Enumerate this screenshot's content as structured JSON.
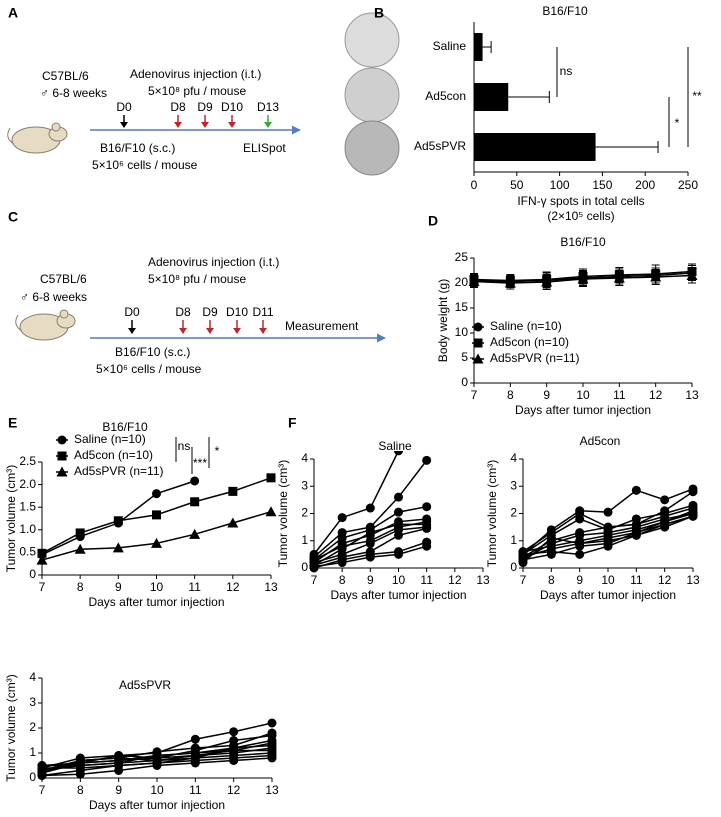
{
  "panel_labels": [
    "A",
    "B",
    "C",
    "D",
    "E",
    "F"
  ],
  "diagram_a": {
    "strain": "C57BL/6",
    "age": "♂ 6-8 weeks",
    "injection": "Adenovirus injection (i.t.)",
    "dose": "5×10⁸ pfu / mouse",
    "days": [
      "D0",
      "D8",
      "D9",
      "D10",
      "D13"
    ],
    "endpoint": "ELISpot",
    "tumor": "B16/F10 (s.c.)",
    "cells": "5×10⁶ cells / mouse"
  },
  "diagram_c": {
    "strain": "C57BL/6",
    "age": "♂ 6-8 weeks",
    "injection": "Adenovirus injection (i.t.)",
    "dose": "5×10⁸ pfu / mouse",
    "days": [
      "D0",
      "D8",
      "D9",
      "D10",
      "D11"
    ],
    "endpoint": "Measurement",
    "tumor": "B16/F10 (s.c.)",
    "cells": "5×10⁶ cells / mouse"
  },
  "chart_data": [
    {
      "type": "hbar",
      "title": "B16/F10",
      "xlabel": "IFN-γ spots in total cells",
      "xlabel_note": "(2×10⁵ cells)",
      "categories": [
        "Saline",
        "Ad5con",
        "Ad5sPVR"
      ],
      "values": [
        10,
        40,
        142
      ],
      "errors": [
        10,
        48,
        73
      ],
      "color": "#000000",
      "xlim": [
        0,
        250
      ],
      "xticks": [
        0,
        50,
        100,
        150,
        200,
        250
      ],
      "annotations": [
        "ns",
        "*",
        "**"
      ]
    },
    {
      "type": "line",
      "title": "B16/F10",
      "xlabel": "Days after tumor injection",
      "ylabel": "Body weight (g)",
      "x": [
        7,
        8,
        9,
        10,
        11,
        12,
        13
      ],
      "xlim": [
        7,
        13
      ],
      "xticks": [
        7,
        8,
        9,
        10,
        11,
        12,
        13
      ],
      "ylim": [
        0,
        25
      ],
      "yticks": [
        0,
        5,
        10,
        15,
        20,
        25
      ],
      "series": [
        {
          "name": "Saline (n=10)",
          "color": "#000000",
          "marker": "circle",
          "values": [
            20.5,
            20.3,
            20.5,
            21,
            21.3,
            21.5,
            22
          ],
          "errors": [
            1.2,
            1.2,
            1.5,
            1.5,
            1.5,
            1.5,
            1.5
          ]
        },
        {
          "name": "Ad5con (n=10)",
          "color": "#000000",
          "marker": "square",
          "values": [
            20.7,
            20.5,
            20.7,
            21.3,
            21.6,
            21.8,
            22.3
          ],
          "errors": [
            1.2,
            1.2,
            1.5,
            1.5,
            1.5,
            1.8,
            1.5
          ]
        },
        {
          "name": "Ad5sPVR (n=11)",
          "color": "#000000",
          "marker": "triangle",
          "values": [
            20.3,
            20,
            20.2,
            20.8,
            21,
            21.2,
            21.5
          ],
          "errors": [
            1.2,
            1.2,
            1.5,
            1.5,
            1.5,
            1.5,
            1.5
          ]
        }
      ]
    },
    {
      "type": "line",
      "title": "B16/F10",
      "xlabel": "Days after tumor injection",
      "ylabel": "Tumor volume (cm³)",
      "x": [
        7,
        8,
        9,
        10,
        11,
        12,
        13
      ],
      "xlim": [
        7,
        13
      ],
      "xticks": [
        7,
        8,
        9,
        10,
        11,
        12,
        13
      ],
      "ylim": [
        0,
        2.5
      ],
      "yticks": [
        0,
        0.5,
        {
          "value": 1,
          "label": "1.0"
        },
        1.5,
        {
          "value": 2,
          "label": "2.0"
        },
        2.5
      ],
      "annotations": [
        "ns",
        "***",
        "*"
      ],
      "series": [
        {
          "name": "Saline (n=10)",
          "color": "#000000",
          "marker": "circle",
          "values": [
            0.45,
            0.85,
            1.15,
            1.8,
            2.08,
            null,
            null
          ]
        },
        {
          "name": "Ad5con (n=10)",
          "color": "#000000",
          "marker": "square",
          "values": [
            0.48,
            0.93,
            1.2,
            1.33,
            1.62,
            1.85,
            2.15
          ]
        },
        {
          "name": "Ad5sPVR (n=11)",
          "color": "#000000",
          "marker": "triangle",
          "values": [
            0.33,
            0.57,
            0.6,
            0.7,
            0.9,
            1.15,
            1.4
          ]
        }
      ]
    },
    {
      "type": "line",
      "title": "Saline",
      "xlabel": "Days after tumor injection",
      "ylabel": "Tumor volume (cm³)",
      "x": [
        7,
        8,
        9,
        10,
        11,
        12,
        13
      ],
      "xlim": [
        7,
        13
      ],
      "xticks": [
        7,
        8,
        9,
        10,
        11,
        12,
        13
      ],
      "ylim": [
        0,
        4
      ],
      "yticks": [
        0,
        1,
        2,
        3,
        4
      ],
      "series": [
        {
          "color": "#000000",
          "marker": "circle",
          "values": [
            0.5,
            1.85,
            2.2,
            4.3,
            null,
            null,
            null
          ]
        },
        {
          "color": "#000000",
          "marker": "circle",
          "values": [
            0.4,
            1.3,
            1.5,
            2.6,
            3.95,
            null,
            null
          ]
        },
        {
          "color": "#000000",
          "marker": "circle",
          "values": [
            0.3,
            1.1,
            1.4,
            2.05,
            2.25,
            null,
            null
          ]
        },
        {
          "color": "#000000",
          "marker": "circle",
          "values": [
            0.2,
            0.9,
            1.2,
            1.7,
            1.8,
            null,
            null
          ]
        },
        {
          "color": "#000000",
          "marker": "circle",
          "values": [
            0.1,
            0.7,
            1.3,
            1.6,
            1.6,
            null,
            null
          ]
        },
        {
          "color": "#000000",
          "marker": "circle",
          "values": [
            0.3,
            0.8,
            1.0,
            1.5,
            1.7,
            null,
            null
          ]
        },
        {
          "color": "#000000",
          "marker": "circle",
          "values": [
            0.2,
            0.5,
            0.9,
            1.4,
            1.5,
            null,
            null
          ]
        },
        {
          "color": "#000000",
          "marker": "circle",
          "values": [
            0.1,
            0.4,
            0.6,
            1.2,
            1.45,
            null,
            null
          ]
        },
        {
          "color": "#000000",
          "marker": "circle",
          "values": [
            0.0,
            0.3,
            0.5,
            0.6,
            0.95,
            null,
            null
          ]
        },
        {
          "color": "#000000",
          "marker": "circle",
          "values": [
            0.05,
            0.2,
            0.4,
            0.5,
            0.8,
            null,
            null
          ]
        }
      ]
    },
    {
      "type": "line",
      "title": "Ad5con",
      "xlabel": "Days after tumor injection",
      "ylabel": "Tumor volume (cm³)",
      "x": [
        7,
        8,
        9,
        10,
        11,
        12,
        13
      ],
      "xlim": [
        7,
        13
      ],
      "xticks": [
        7,
        8,
        9,
        10,
        11,
        12,
        13
      ],
      "ylim": [
        0,
        4
      ],
      "yticks": [
        0,
        1,
        2,
        3,
        4
      ],
      "series": [
        {
          "color": "#000000",
          "marker": "circle",
          "values": [
            0.5,
            1.4,
            2.1,
            2.05,
            2.85,
            2.5,
            2.9
          ]
        },
        {
          "color": "#000000",
          "marker": "circle",
          "values": [
            0.6,
            1.3,
            2.0,
            1.5,
            1.6,
            2.1,
            2.8
          ]
        },
        {
          "color": "#000000",
          "marker": "circle",
          "values": [
            0.5,
            1.2,
            1.8,
            1.4,
            1.8,
            2.0,
            2.3
          ]
        },
        {
          "color": "#000000",
          "marker": "circle",
          "values": [
            0.4,
            1.0,
            1.3,
            1.5,
            1.6,
            1.9,
            2.2
          ]
        },
        {
          "color": "#000000",
          "marker": "circle",
          "values": [
            0.3,
            0.9,
            1.2,
            1.3,
            1.5,
            1.8,
            2.0
          ]
        },
        {
          "color": "#000000",
          "marker": "circle",
          "values": [
            0.6,
            0.8,
            1.0,
            1.2,
            1.4,
            1.7,
            2.0
          ]
        },
        {
          "color": "#000000",
          "marker": "circle",
          "values": [
            0.2,
            1.1,
            0.9,
            1.1,
            1.3,
            1.6,
            1.9
          ]
        },
        {
          "color": "#000000",
          "marker": "circle",
          "values": [
            0.4,
            0.7,
            0.9,
            1.0,
            1.2,
            1.6,
            1.9
          ]
        },
        {
          "color": "#000000",
          "marker": "circle",
          "values": [
            0.3,
            0.5,
            0.8,
            0.9,
            1.3,
            1.7,
            2.1
          ]
        },
        {
          "color": "#000000",
          "marker": "circle",
          "values": [
            0.5,
            0.6,
            0.5,
            0.8,
            1.2,
            1.5,
            1.9
          ]
        }
      ]
    },
    {
      "type": "line",
      "title": "Ad5sPVR",
      "xlabel": "Days after tumor injection",
      "ylabel": "Tumor volume (cm³)",
      "x": [
        7,
        8,
        9,
        10,
        11,
        12,
        13
      ],
      "xlim": [
        7,
        13
      ],
      "xticks": [
        7,
        8,
        9,
        10,
        11,
        12,
        13
      ],
      "ylim": [
        0,
        4
      ],
      "yticks": [
        0,
        1,
        2,
        3,
        4
      ],
      "series": [
        {
          "color": "#000000",
          "marker": "circle",
          "values": [
            0.4,
            0.8,
            0.9,
            1.0,
            1.55,
            1.85,
            2.2
          ]
        },
        {
          "color": "#000000",
          "marker": "circle",
          "values": [
            0.3,
            0.7,
            0.8,
            1.05,
            1.2,
            1.3,
            1.8
          ]
        },
        {
          "color": "#000000",
          "marker": "circle",
          "values": [
            0.5,
            0.6,
            0.9,
            0.8,
            1.1,
            1.5,
            1.7
          ]
        },
        {
          "color": "#000000",
          "marker": "circle",
          "values": [
            0.3,
            0.6,
            0.7,
            0.9,
            1.0,
            1.2,
            1.5
          ]
        },
        {
          "color": "#000000",
          "marker": "circle",
          "values": [
            0.2,
            0.6,
            0.7,
            0.8,
            0.9,
            1.1,
            1.4
          ]
        },
        {
          "color": "#000000",
          "marker": "circle",
          "values": [
            0.5,
            0.5,
            0.6,
            0.7,
            0.8,
            1.2,
            1.3
          ]
        },
        {
          "color": "#000000",
          "marker": "circle",
          "values": [
            0.2,
            0.7,
            0.8,
            0.7,
            0.9,
            1.0,
            1.2
          ]
        },
        {
          "color": "#000000",
          "marker": "circle",
          "values": [
            0.3,
            0.5,
            0.6,
            0.9,
            1.0,
            1.1,
            1.1
          ]
        },
        {
          "color": "#000000",
          "marker": "circle",
          "values": [
            0.4,
            0.4,
            0.5,
            0.6,
            0.8,
            0.9,
            1.0
          ]
        },
        {
          "color": "#000000",
          "marker": "circle",
          "values": [
            0.1,
            0.3,
            0.5,
            0.6,
            0.7,
            0.8,
            0.9
          ]
        },
        {
          "color": "#000000",
          "marker": "circle",
          "values": [
            0.1,
            0.15,
            0.3,
            0.5,
            0.6,
            0.7,
            0.8
          ]
        }
      ]
    }
  ]
}
